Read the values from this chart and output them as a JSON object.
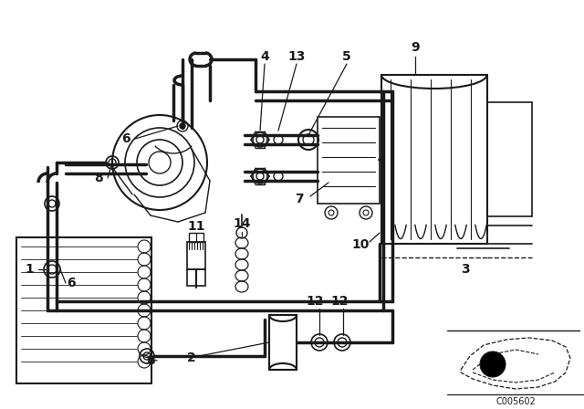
{
  "bg_color": "#ffffff",
  "line_color": "#1a1a1a",
  "diagram_code": "C005602",
  "fig_w": 6.4,
  "fig_h": 4.48,
  "dpi": 100
}
